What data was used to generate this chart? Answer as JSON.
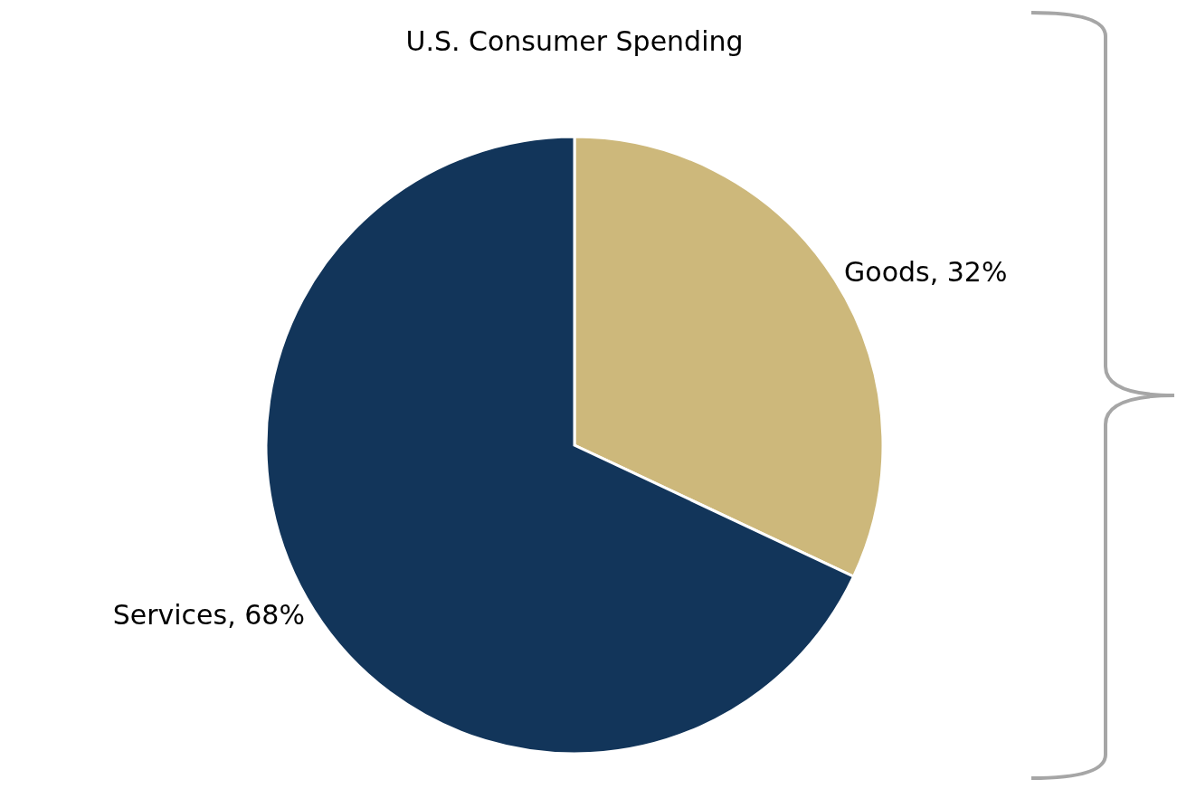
{
  "chart_data": {
    "type": "pie",
    "title": "U.S. Consumer Spending",
    "categories": [
      "Goods",
      "Services"
    ],
    "values": [
      32,
      68
    ],
    "value_labels": [
      "32%",
      "68%"
    ],
    "colors": [
      "#cdb87b",
      "#12355a"
    ],
    "legend": false
  }
}
